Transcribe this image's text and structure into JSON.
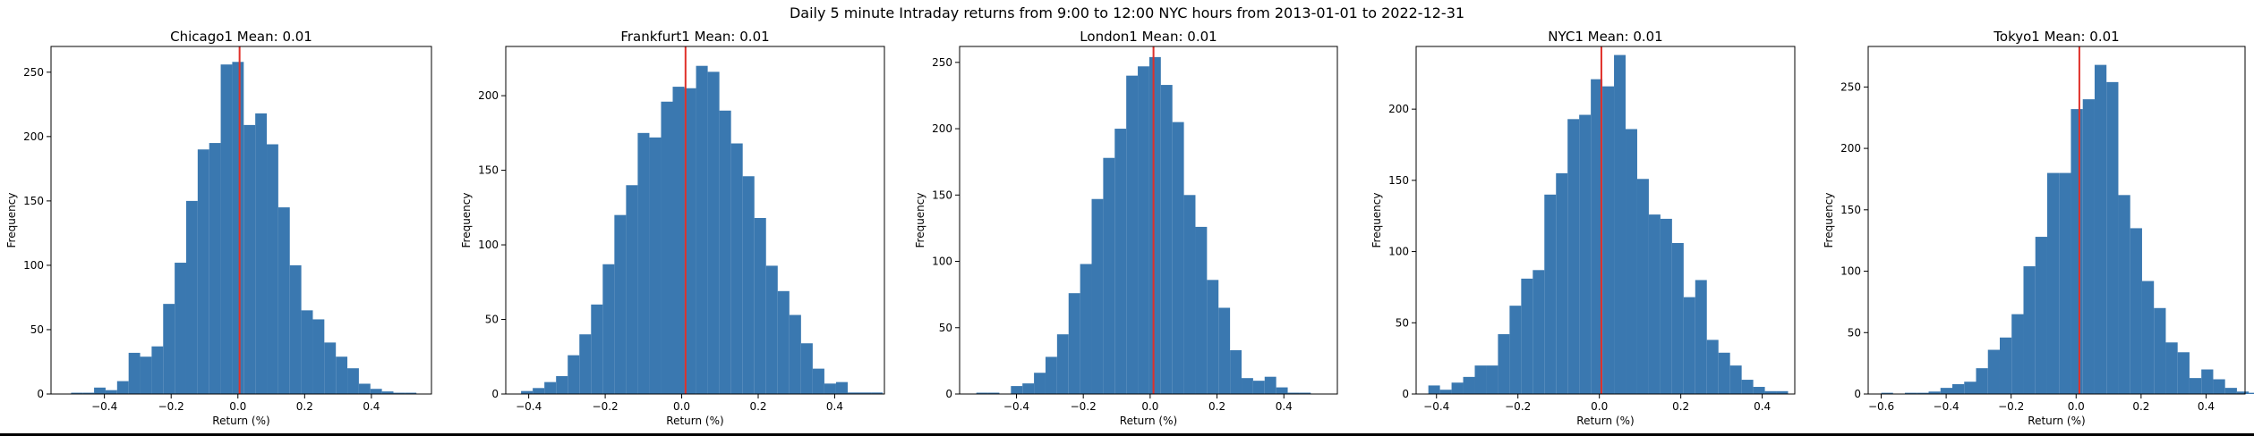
{
  "figure": {
    "suptitle": "Daily 5 minute Intraday returns from 9:00 to 12:00 NYC hours from 2013-01-01 to 2022-12-31",
    "bar_color": "#3a78b0",
    "mean_line_color": "#e0302a"
  },
  "chart_data": [
    {
      "type": "bar",
      "title": "Chicago1 Mean: 0.01",
      "xlabel": "Return (%)",
      "ylabel": "Frequency",
      "xlim": [
        -0.56,
        0.58
      ],
      "ylim": [
        0,
        270
      ],
      "xticks": [
        -0.4,
        -0.2,
        0.0,
        0.2,
        0.4
      ],
      "xtick_labels": [
        "−0.4",
        "−0.2",
        "0.0",
        "0.2",
        "0.4"
      ],
      "yticks": [
        0,
        50,
        100,
        150,
        200,
        250
      ],
      "mean": 0.005,
      "bin_start": -0.5,
      "bin_width": 0.0345,
      "values": [
        1,
        1,
        5,
        3,
        10,
        32,
        29,
        37,
        70,
        102,
        150,
        190,
        195,
        256,
        258,
        209,
        218,
        194,
        145,
        100,
        65,
        58,
        40,
        29,
        20,
        8,
        4,
        2,
        1,
        1
      ]
    },
    {
      "type": "bar",
      "title": "Frankfurt1 Mean: 0.01",
      "xlabel": "Return (%)",
      "ylabel": "Frequency",
      "xlim": [
        -0.46,
        0.53
      ],
      "ylim": [
        0,
        233
      ],
      "xticks": [
        -0.4,
        -0.2,
        0.0,
        0.2,
        0.4
      ],
      "xtick_labels": [
        "−0.4",
        "−0.2",
        "0.0",
        "0.2",
        "0.4"
      ],
      "yticks": [
        0,
        50,
        100,
        150,
        200
      ],
      "mean": 0.01,
      "bin_start": -0.42,
      "bin_width": 0.0305,
      "values": [
        2,
        4,
        8,
        12,
        26,
        40,
        60,
        87,
        120,
        140,
        175,
        172,
        196,
        206,
        205,
        220,
        216,
        190,
        168,
        146,
        118,
        86,
        69,
        53,
        34,
        17,
        7,
        8,
        1,
        1,
        1
      ]
    },
    {
      "type": "bar",
      "title": "London1 Mean: 0.01",
      "xlabel": "Return (%)",
      "ylabel": "Frequency",
      "xlim": [
        -0.57,
        0.56
      ],
      "ylim": [
        0,
        262
      ],
      "xticks": [
        -0.4,
        -0.2,
        0.0,
        0.2,
        0.4
      ],
      "xtick_labels": [
        "−0.4",
        "−0.2",
        "0.0",
        "0.2",
        "0.4"
      ],
      "yticks": [
        0,
        50,
        100,
        150,
        200,
        250
      ],
      "mean": 0.01,
      "bin_start": -0.52,
      "bin_width": 0.0345,
      "values": [
        1,
        1,
        0,
        6,
        8,
        16,
        28,
        45,
        76,
        98,
        147,
        178,
        200,
        240,
        247,
        254,
        233,
        205,
        150,
        126,
        86,
        65,
        33,
        12,
        10,
        13,
        5,
        1,
        1
      ]
    },
    {
      "type": "bar",
      "title": "NYC1 Mean: 0.01",
      "xlabel": "Return (%)",
      "ylabel": "Frequency",
      "xlim": [
        -0.45,
        0.48
      ],
      "ylim": [
        0,
        244
      ],
      "xticks": [
        -0.4,
        -0.2,
        0.0,
        0.2,
        0.4
      ],
      "xtick_labels": [
        "−0.4",
        "−0.2",
        "0.0",
        "0.2",
        "0.4"
      ],
      "yticks": [
        0,
        50,
        100,
        150,
        200
      ],
      "mean": 0.005,
      "bin_start": -0.42,
      "bin_width": 0.0285,
      "values": [
        6,
        3,
        8,
        12,
        20,
        20,
        42,
        62,
        81,
        87,
        140,
        155,
        193,
        196,
        221,
        216,
        238,
        186,
        151,
        126,
        123,
        106,
        68,
        80,
        38,
        29,
        20,
        10,
        5,
        2,
        2
      ]
    },
    {
      "type": "bar",
      "title": "Tokyo1 Mean: 0.01",
      "xlabel": "Return (%)",
      "ylabel": "Frequency",
      "xlim": [
        -0.64,
        0.52
      ],
      "ylim": [
        0,
        283
      ],
      "xticks": [
        -0.6,
        -0.4,
        -0.2,
        0.0,
        0.2,
        0.4
      ],
      "xtick_labels": [
        "−0.6",
        "−0.4",
        "−0.2",
        "0.0",
        "0.2",
        "0.4"
      ],
      "yticks": [
        0,
        50,
        100,
        150,
        200,
        250
      ],
      "mean": 0.01,
      "bin_start": -0.6,
      "bin_width": 0.0365,
      "values": [
        1,
        0,
        1,
        1,
        2,
        5,
        8,
        10,
        21,
        36,
        46,
        65,
        104,
        128,
        180,
        180,
        232,
        240,
        268,
        254,
        162,
        135,
        92,
        70,
        42,
        34,
        13,
        20,
        12,
        5,
        2,
        1
      ]
    }
  ]
}
